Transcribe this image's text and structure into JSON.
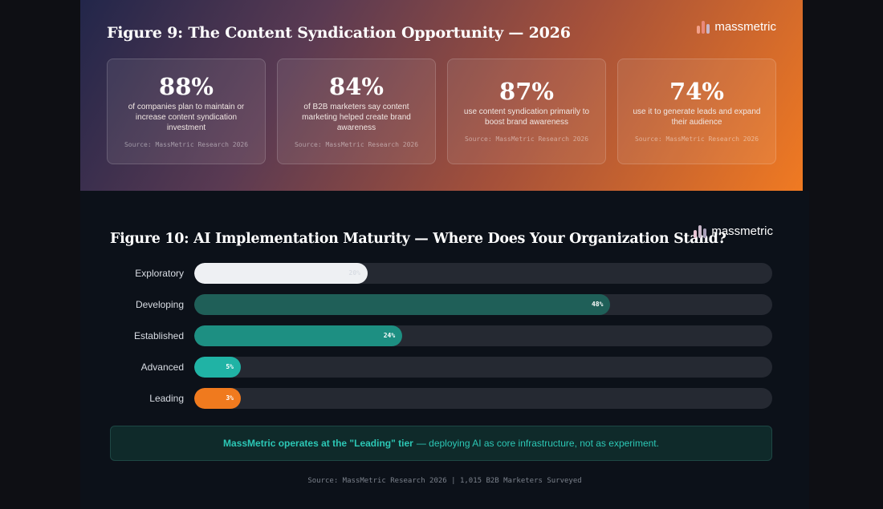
{
  "figure9": {
    "title": "Figure 9: The Content Syndication Opportunity — 2026",
    "brand": "massmetric",
    "stats": [
      {
        "value": "88%",
        "desc": "of companies plan to maintain or increase content syndication investment",
        "source": "Source: MassMetric Research 2026"
      },
      {
        "value": "84%",
        "desc": "of B2B marketers say content marketing helped create brand awareness",
        "source": "Source: MassMetric Research 2026"
      },
      {
        "value": "87%",
        "desc": "use content syndication primarily to boost brand awareness",
        "source": "Source: MassMetric Research 2026"
      },
      {
        "value": "74%",
        "desc": "use it to generate leads and expand their audience",
        "source": "Source: MassMetric Research 2026"
      }
    ]
  },
  "figure10": {
    "title": "Figure 10: AI Implementation Maturity — Where Does Your Organization Stand?",
    "brand": "massmetric",
    "callout_bold": "MassMetric operates at the \"Leading\" tier",
    "callout_rest": "— deploying AI as core infrastructure, not as experiment.",
    "source": "Source: MassMetric Research 2026 | 1,015 B2B Marketers Surveyed"
  },
  "chart_data": {
    "type": "bar",
    "orientation": "horizontal",
    "title": "Figure 10: AI Implementation Maturity — Where Does Your Organization Stand?",
    "categories": [
      "Exploratory",
      "Developing",
      "Established",
      "Advanced",
      "Leading"
    ],
    "values": [
      20,
      48,
      24,
      5,
      3
    ],
    "value_labels": [
      "20%",
      "48%",
      "24%",
      "5%",
      "3%"
    ],
    "xlim": [
      0,
      100
    ],
    "colors": [
      "#eef0f3",
      "#1f5f58",
      "#1d8f82",
      "#20b3a5",
      "#f07a1e"
    ],
    "label_colors": [
      "#d9dde4",
      "#ffffff",
      "#ffffff",
      "#ffffff",
      "#ffffff"
    ]
  },
  "colors": {
    "accent_teal": "#2cc7b5",
    "accent_orange": "#f07a1e",
    "logo_bar_1": "#f2a08a",
    "logo_bar_2": "#e8897a",
    "logo_bar_3": "#c8b6c9"
  }
}
